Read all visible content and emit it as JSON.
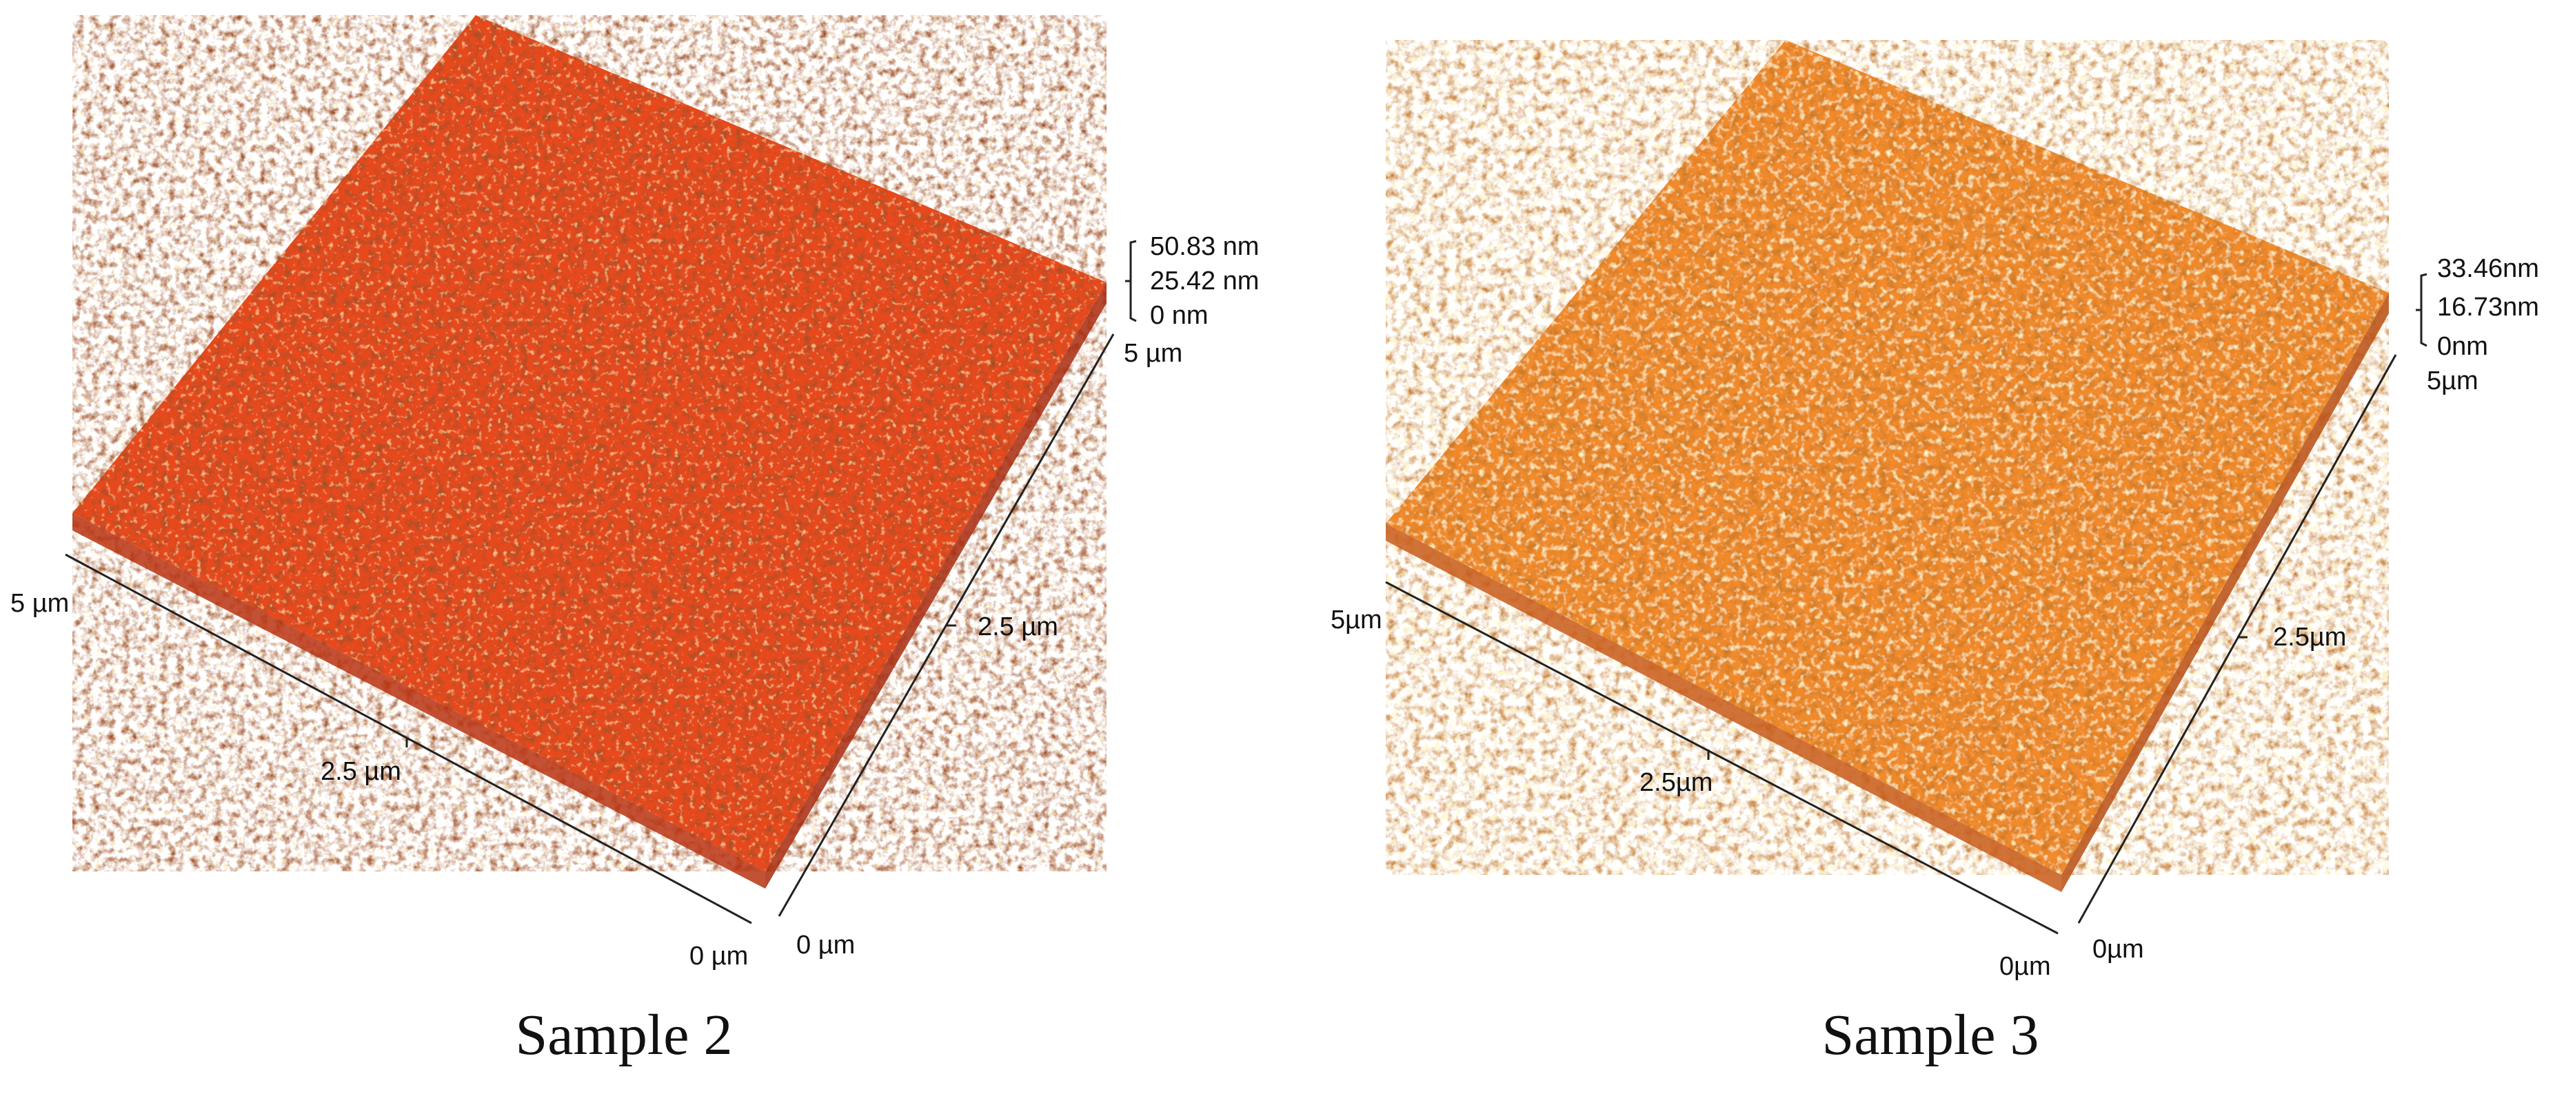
{
  "panels": [
    {
      "caption": "Sample 2",
      "z_scale": {
        "max": "50.83 nm",
        "mid": "25.42 nm",
        "min": "0 nm"
      },
      "x_axis": {
        "start": "5 µm",
        "mid": "2.5 µm",
        "end": "0 µm"
      },
      "y_axis": {
        "start": "0 µm",
        "mid": "2.5 µm",
        "end": "5 µm"
      },
      "colors": {
        "base": "#e8491a",
        "dark": "#9a1f08",
        "light": "#ffb347",
        "highlight": "#fff1b8"
      }
    },
    {
      "caption": "Sample 3",
      "z_scale": {
        "max": "33.46nm",
        "mid": "16.73nm",
        "min": "0nm"
      },
      "x_axis": {
        "start": "5µm",
        "mid": "2.5µm",
        "end": "0µm"
      },
      "y_axis": {
        "start": "0µm",
        "mid": "2.5µm",
        "end": "5µm"
      },
      "colors": {
        "base": "#f08a2a",
        "dark": "#b84a10",
        "light": "#ffc266",
        "highlight": "#fff4c8"
      }
    }
  ]
}
